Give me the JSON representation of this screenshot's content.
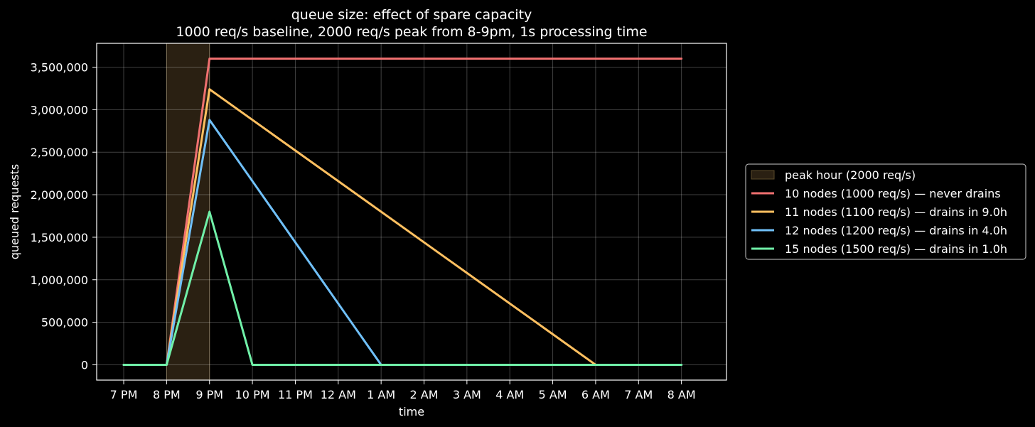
{
  "chart_data": {
    "type": "line",
    "title": "queue size: effect of spare capacity",
    "subtitle": "1000 req/s baseline, 2000 req/s peak from 8-9pm, 1s processing time",
    "xlabel": "time",
    "ylabel": "queued requests",
    "x_ticks": [
      "7 PM",
      "8 PM",
      "9 PM",
      "10 PM",
      "11 PM",
      "12 AM",
      "1 AM",
      "2 AM",
      "3 AM",
      "4 AM",
      "5 AM",
      "6 AM",
      "7 AM",
      "8 AM"
    ],
    "x_unit_note": "hours relative to 7 PM",
    "xlim": [
      -0.63,
      14.05
    ],
    "ylim": [
      -180000,
      3780000
    ],
    "y_ticks": [
      0,
      500000,
      1000000,
      1500000,
      2000000,
      2500000,
      3000000,
      3500000
    ],
    "y_tick_labels": [
      "0",
      "500,000",
      "1,000,000",
      "1,500,000",
      "2,000,000",
      "2,500,000",
      "3,000,000",
      "3,500,000"
    ],
    "grid": true,
    "legend_position": "outside-right",
    "shaded_regions": [
      {
        "name": "peak hour (2000 req/s)",
        "x_start": "8 PM",
        "x_end": "9 PM",
        "color": "#2a2012",
        "edge_color": "#5a4a2a"
      }
    ],
    "series": [
      {
        "name": "10 nodes (1000 req/s) — never drains",
        "color": "#f07070",
        "x": [
          "7 PM",
          "8 PM",
          "9 PM",
          "10 PM",
          "11 PM",
          "12 AM",
          "1 AM",
          "2 AM",
          "3 AM",
          "4 AM",
          "5 AM",
          "6 AM",
          "7 AM",
          "8 AM"
        ],
        "values": [
          0,
          0,
          3600000,
          3600000,
          3600000,
          3600000,
          3600000,
          3600000,
          3600000,
          3600000,
          3600000,
          3600000,
          3600000,
          3600000
        ]
      },
      {
        "name": "11 nodes (1100 req/s) — drains in 9.0h",
        "color": "#ffc060",
        "x": [
          "7 PM",
          "8 PM",
          "9 PM",
          "6 AM",
          "7 AM",
          "8 AM"
        ],
        "values": [
          0,
          0,
          3240000,
          0,
          0,
          0
        ]
      },
      {
        "name": "12 nodes (1200 req/s) — drains in 4.0h",
        "color": "#70c0f8",
        "x": [
          "7 PM",
          "8 PM",
          "9 PM",
          "1 AM",
          "8 AM"
        ],
        "values": [
          0,
          0,
          2880000,
          0,
          0
        ]
      },
      {
        "name": "15 nodes (1500 req/s) — drains in 1.0h",
        "color": "#70f0a8",
        "x": [
          "7 PM",
          "8 PM",
          "9 PM",
          "10 PM",
          "8 AM"
        ],
        "values": [
          0,
          0,
          1800000,
          0,
          0
        ]
      }
    ]
  }
}
